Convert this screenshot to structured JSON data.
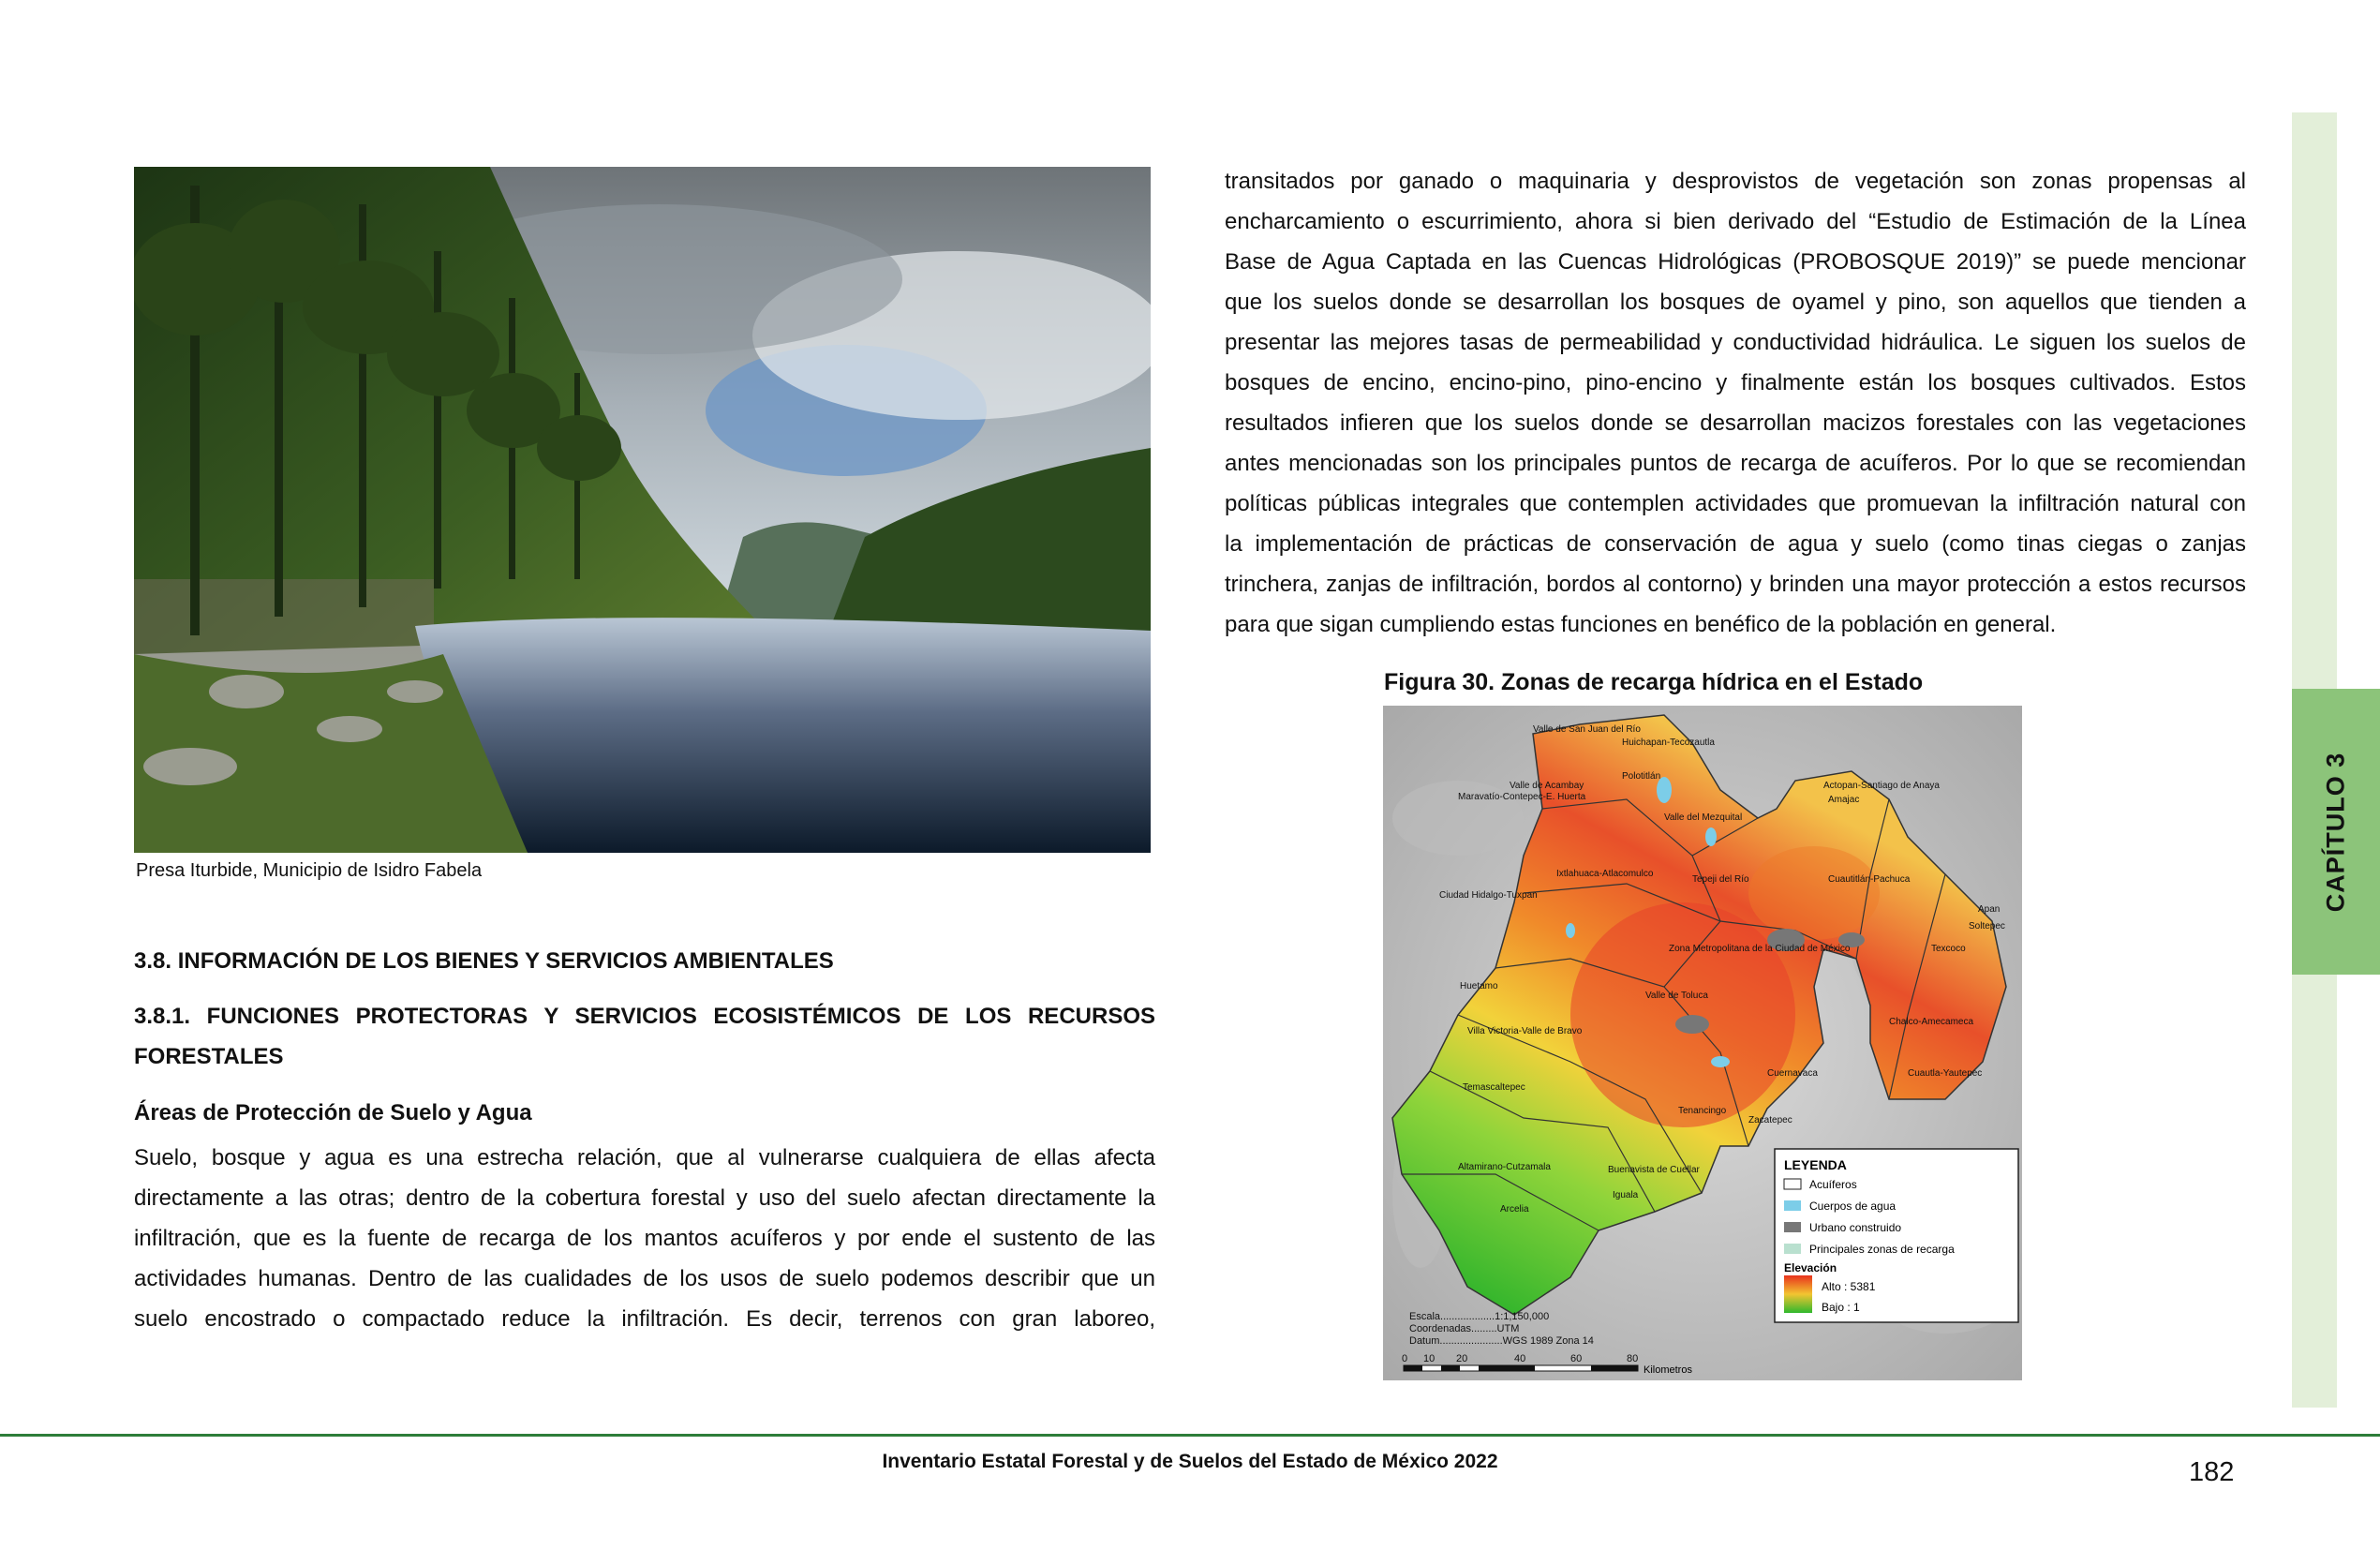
{
  "side_tab": {
    "chapter": "CAPÍTULO 3"
  },
  "photo": {
    "caption": "Presa Iturbide, Municipio de Isidro Fabela"
  },
  "section": {
    "heading_38": "3.8. INFORMACIÓN DE LOS BIENES Y SERVICIOS AMBIENTALES",
    "heading_381": "3.8.1. FUNCIONES PROTECTORAS Y SERVICIOS ECOSISTÉMICOS DE LOS RECURSOS FORESTALES",
    "subheading": "Áreas de Protección de Suelo y Agua",
    "left_lines": [
      "Suelo, bosque y agua es una estrecha relación, que al vulnerarse cualquiera de ellas afecta",
      "directamente a las otras; dentro de la cobertura forestal y uso del suelo afectan directamente la",
      "infiltración, que es la fuente de recarga de los mantos acuíferos y por ende el sustento de las",
      "actividades humanas. Dentro de las cualidades de los usos de suelo podemos describir que un",
      "suelo encostrado o compactado reduce la infiltración. Es decir, terrenos con gran laboreo,"
    ],
    "right_lines": [
      "transitados por ganado o maquinaria y desprovistos de vegetación son zonas propensas al",
      "encharcamiento o escurrimiento, ahora si bien derivado del “Estudio de Estimación de la Línea",
      "Base de Agua Captada en las Cuencas Hidrológicas (PROBOSQUE 2019)” se puede mencionar",
      "que los suelos donde se desarrollan los bosques de oyamel y pino, son aquellos que tienden a",
      "presentar las mejores tasas de permeabilidad y conductividad hidráulica. Le siguen los suelos de",
      "bosques de encino, encino-pino, pino-encino y finalmente están los bosques cultivados. Estos",
      "resultados infieren que los suelos donde se desarrollan macizos forestales con las vegetaciones",
      "antes mencionadas son los principales puntos de recarga de acuíferos. Por lo que se recomiendan",
      "políticas públicas integrales que contemplen actividades que promuevan la infiltración natural con",
      "la implementación de prácticas de conservación de agua y suelo (como tinas ciegas o zanjas",
      "trinchera, zanjas de infiltración, bordos al contorno) y brinden una mayor protección a estos recursos",
      "para que sigan cumpliendo estas funciones en benéfico de la población en general."
    ]
  },
  "figure": {
    "title": "Figura 30. Zonas de recarga hídrica en el Estado",
    "regions": [
      "Valle de San Juan del Río",
      "Huichapan-Tecozautla",
      "Polotitlán",
      "Valle de Acambay",
      "Maravatío-Contepec-E. Huerta",
      "Valle del Mezquital",
      "Actopan-Santiago de Anaya",
      "Amajac",
      "Ixtlahuaca-Atlacomulco",
      "Tepeji del Río",
      "Cuautitlán-Pachuca",
      "Ciudad Hidalgo-Tuxpan",
      "Apan",
      "Soltepec",
      "Zona Metropolitana de la Ciudad de México",
      "Texcoco",
      "Huetamo",
      "Valle de Toluca",
      "Chalco-Amecameca",
      "Villa Victoria-Valle de Bravo",
      "Cuautla-Yautepec",
      "Temascaltepec",
      "Cuernavaca",
      "Tenancingo",
      "Zacatepec",
      "Altamirano-Cutzamala",
      "Buenavista de Cuellar",
      "Iguala",
      "Arcelia"
    ],
    "legend": {
      "title": "LEYENDA",
      "items": [
        "Acuíferos",
        "Cuerpos de agua",
        "Urbano construido",
        "Principales zonas de recarga"
      ],
      "elevation_title": "Elevación",
      "high": "Alto : 5381",
      "low": "Bajo : 1"
    },
    "meta": {
      "scale": "Escala...................1:1,150,000",
      "coords": "Coordenadas.........UTM",
      "datum": "Datum......................WGS 1989 Zona 14"
    },
    "scalebar_ticks": [
      "0",
      "10",
      "20",
      "40",
      "60",
      "80"
    ],
    "scalebar_unit": "Kilometros",
    "colors": {
      "high": "#e8321c",
      "mid": "#f2c531",
      "low": "#2fb82e",
      "water": "#7ccde8",
      "urban": "#777777",
      "recharge": "#b9e0cf"
    }
  },
  "footer": {
    "title": "Inventario Estatal Forestal y de Suelos del Estado de México 2022",
    "page_number": "182"
  }
}
